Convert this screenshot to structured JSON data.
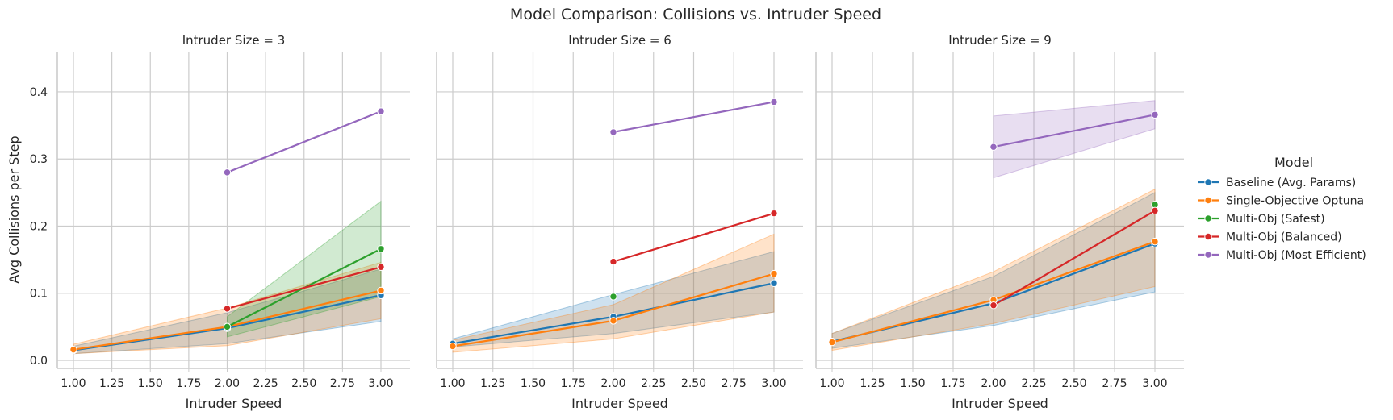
{
  "figure": {
    "suptitle": "Model Comparison: Collisions vs. Intruder Speed"
  },
  "legend": {
    "title": "Model"
  },
  "chart_data": {
    "type": "line",
    "x_ticks": [
      1.0,
      1.25,
      1.5,
      1.75,
      2.0,
      2.25,
      2.5,
      2.75,
      3.0
    ],
    "x_tick_labels": [
      "1.00",
      "1.25",
      "1.50",
      "1.75",
      "2.00",
      "2.25",
      "2.50",
      "2.75",
      "3.00"
    ],
    "y_ticks": [
      0.0,
      0.1,
      0.2,
      0.3,
      0.4
    ],
    "y_tick_labels": [
      "0.0",
      "0.1",
      "0.2",
      "0.3",
      "0.4"
    ],
    "xlim": [
      0.9,
      3.1
    ],
    "ylim": [
      -0.012,
      0.46
    ],
    "xlabel": "Intruder Speed",
    "ylabel": "Avg Collisions per Step",
    "grid": true,
    "legend_position": "right",
    "colors": {
      "Baseline (Avg. Params)": "#1f77b4",
      "Single-Objective Optuna": "#ff7f0e",
      "Multi-Obj (Safest)": "#2ca02c",
      "Multi-Obj (Balanced)": "#d62728",
      "Multi-Obj (Most Efficient)": "#9467bd"
    },
    "legend_entries": [
      "Baseline (Avg. Params)",
      "Single-Objective Optuna",
      "Multi-Obj (Safest)",
      "Multi-Obj (Balanced)",
      "Multi-Obj (Most Efficient)"
    ],
    "facets": [
      {
        "title": "Intruder Size = 3",
        "series": [
          {
            "name": "Baseline (Avg. Params)",
            "x": [
              1,
              2,
              3
            ],
            "y": [
              0.015,
              0.048,
              0.097
            ],
            "ci_low": [
              0.01,
              0.025,
              0.058
            ],
            "ci_high": [
              0.021,
              0.071,
              0.136
            ]
          },
          {
            "name": "Single-Objective Optuna",
            "x": [
              1,
              2,
              3
            ],
            "y": [
              0.016,
              0.05,
              0.104
            ],
            "ci_low": [
              0.01,
              0.022,
              0.062
            ],
            "ci_high": [
              0.024,
              0.078,
              0.146
            ]
          },
          {
            "name": "Multi-Obj (Safest)",
            "x": [
              2,
              3
            ],
            "y": [
              0.05,
              0.166
            ],
            "ci_low": [
              0.035,
              0.095
            ],
            "ci_high": [
              0.065,
              0.237
            ]
          },
          {
            "name": "Multi-Obj (Balanced)",
            "x": [
              2,
              3
            ],
            "y": [
              0.077,
              0.139
            ],
            "ci_low": [
              0.077,
              0.139
            ],
            "ci_high": [
              0.077,
              0.139
            ]
          },
          {
            "name": "Multi-Obj (Most Efficient)",
            "x": [
              2,
              3
            ],
            "y": [
              0.28,
              0.371
            ],
            "ci_low": [
              0.28,
              0.371
            ],
            "ci_high": [
              0.28,
              0.371
            ]
          }
        ]
      },
      {
        "title": "Intruder Size = 6",
        "series": [
          {
            "name": "Baseline (Avg. Params)",
            "x": [
              1,
              2,
              3
            ],
            "y": [
              0.025,
              0.065,
              0.115
            ],
            "ci_low": [
              0.02,
              0.04,
              0.072
            ],
            "ci_high": [
              0.032,
              0.098,
              0.162
            ]
          },
          {
            "name": "Single-Objective Optuna",
            "x": [
              1,
              2,
              3
            ],
            "y": [
              0.021,
              0.059,
              0.129
            ],
            "ci_low": [
              0.012,
              0.032,
              0.072
            ],
            "ci_high": [
              0.03,
              0.083,
              0.188
            ]
          },
          {
            "name": "Multi-Obj (Safest)",
            "x": [
              2
            ],
            "y": [
              0.095
            ],
            "ci_low": [
              0.095
            ],
            "ci_high": [
              0.095
            ]
          },
          {
            "name": "Multi-Obj (Balanced)",
            "x": [
              2,
              3
            ],
            "y": [
              0.147,
              0.219
            ],
            "ci_low": [
              0.147,
              0.219
            ],
            "ci_high": [
              0.147,
              0.219
            ]
          },
          {
            "name": "Multi-Obj (Most Efficient)",
            "x": [
              2,
              3
            ],
            "y": [
              0.34,
              0.385
            ],
            "ci_low": [
              0.34,
              0.385
            ],
            "ci_high": [
              0.34,
              0.385
            ]
          }
        ]
      },
      {
        "title": "Intruder Size = 9",
        "series": [
          {
            "name": "Baseline (Avg. Params)",
            "x": [
              1,
              2,
              3
            ],
            "y": [
              0.028,
              0.085,
              0.174
            ],
            "ci_low": [
              0.018,
              0.052,
              0.102
            ],
            "ci_high": [
              0.04,
              0.125,
              0.25
            ]
          },
          {
            "name": "Single-Objective Optuna",
            "x": [
              1,
              2,
              3
            ],
            "y": [
              0.027,
              0.09,
              0.177
            ],
            "ci_low": [
              0.015,
              0.055,
              0.11
            ],
            "ci_high": [
              0.04,
              0.132,
              0.255
            ]
          },
          {
            "name": "Multi-Obj (Safest)",
            "x": [
              3
            ],
            "y": [
              0.232
            ],
            "ci_low": [
              0.232
            ],
            "ci_high": [
              0.232
            ]
          },
          {
            "name": "Multi-Obj (Balanced)",
            "x": [
              2,
              3
            ],
            "y": [
              0.082,
              0.223
            ],
            "ci_low": [
              0.082,
              0.223
            ],
            "ci_high": [
              0.082,
              0.223
            ]
          },
          {
            "name": "Multi-Obj (Most Efficient)",
            "x": [
              2,
              3
            ],
            "y": [
              0.318,
              0.366
            ],
            "ci_low": [
              0.272,
              0.345
            ],
            "ci_high": [
              0.364,
              0.387
            ]
          }
        ]
      }
    ]
  }
}
